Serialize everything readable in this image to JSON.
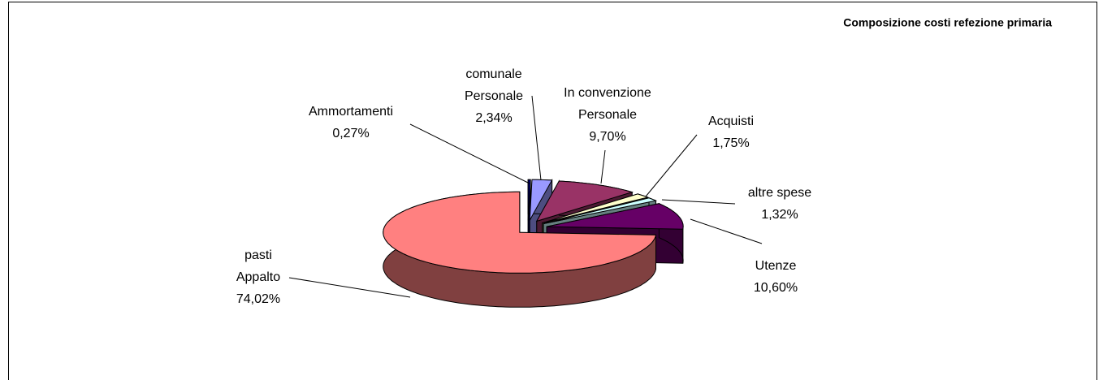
{
  "chart_data": {
    "type": "pie3d",
    "title": "Composizione costi refezione primaria",
    "categories": [
      [
        "Ammortamenti"
      ],
      [
        "comunale",
        "Personale"
      ],
      [
        "In convenzione",
        "Personale"
      ],
      [
        "Acquisti"
      ],
      [
        "altre spese"
      ],
      [
        "Utenze"
      ],
      [
        "pasti",
        "Appalto"
      ]
    ],
    "values": [
      0.27,
      2.34,
      9.7,
      1.75,
      1.32,
      10.6,
      74.02
    ],
    "value_labels": [
      "0,27%",
      "2,34%",
      "9,70%",
      "1,75%",
      "1,32%",
      "10,60%",
      "74,02%"
    ],
    "colors": [
      "#000080",
      "#9999FF",
      "#993366",
      "#FFFFCC",
      "#CCFFFF",
      "#660066",
      "#FF8080"
    ]
  }
}
